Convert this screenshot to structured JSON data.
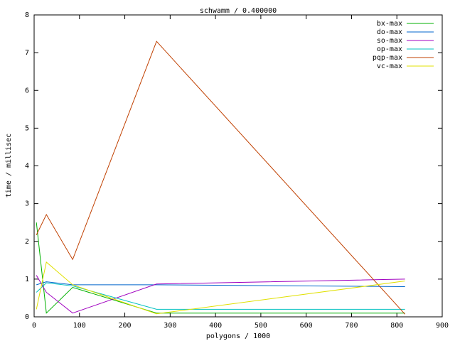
{
  "chart_data": {
    "type": "line",
    "title": "schwamm / 0.400000",
    "x_label": "polygons / 1000",
    "y_label": "time / millisec",
    "x": [
      5,
      27,
      85,
      270,
      818
    ],
    "series": [
      {
        "name": "bx-max",
        "color": "#00b000",
        "values": [
          2.5,
          0.1,
          0.78,
          0.1,
          0.1
        ]
      },
      {
        "name": "do-max",
        "color": "#0066cc",
        "values": [
          0.85,
          0.93,
          0.85,
          0.85,
          0.8
        ]
      },
      {
        "name": "so-max",
        "color": "#a000c0",
        "values": [
          1.1,
          0.65,
          0.1,
          0.87,
          1.0
        ]
      },
      {
        "name": "op-max",
        "color": "#00c0c0",
        "values": [
          0.65,
          0.9,
          0.82,
          0.2,
          0.2
        ]
      },
      {
        "name": "pqp-max",
        "color": "#c04000",
        "values": [
          2.17,
          2.71,
          1.52,
          7.3,
          0.07
        ]
      },
      {
        "name": "vc-max",
        "color": "#e0e000",
        "values": [
          0.2,
          1.45,
          0.85,
          0.08,
          0.95
        ]
      }
    ],
    "xlim": [
      0,
      900
    ],
    "xticks": [
      0,
      100,
      200,
      300,
      400,
      500,
      600,
      700,
      800,
      900
    ],
    "ylim": [
      0,
      8
    ],
    "yticks": [
      0,
      1,
      2,
      3,
      4,
      5,
      6,
      7,
      8
    ],
    "legend": "upper right"
  }
}
